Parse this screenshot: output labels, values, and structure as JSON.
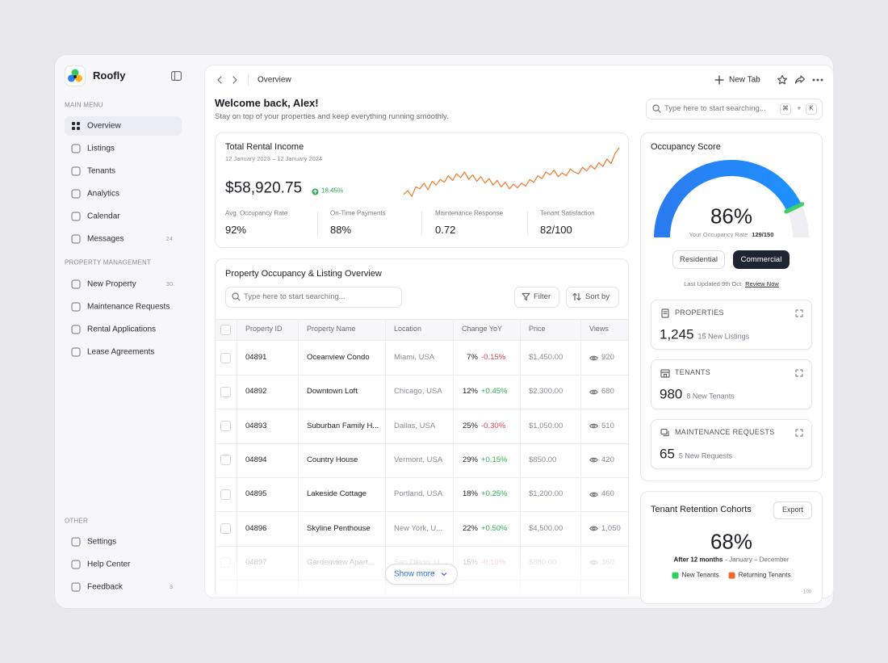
{
  "app": {
    "name": "Roofly"
  },
  "sidebar": {
    "sections": [
      {
        "title": "MAIN MENU",
        "items": [
          {
            "label": "Overview"
          },
          {
            "label": "Listings"
          },
          {
            "label": "Tenants"
          },
          {
            "label": "Analytics"
          },
          {
            "label": "Calendar"
          },
          {
            "label": "Messages",
            "badge": "24"
          }
        ]
      },
      {
        "title": "PROPERTY MANAGEMENT",
        "items": [
          {
            "label": "New Property",
            "badge": "30"
          },
          {
            "label": "Maintenance Requests"
          },
          {
            "label": "Rental Applications"
          },
          {
            "label": "Lease Agreements"
          }
        ]
      },
      {
        "title": "OTHER",
        "items": [
          {
            "label": "Settings"
          },
          {
            "label": "Help Center"
          },
          {
            "label": "Feedback",
            "badge": "3"
          }
        ]
      }
    ]
  },
  "topbar": {
    "breadcrumb": "Overview",
    "new_tab": "New Tab"
  },
  "welcome": {
    "title": "Welcome back, Alex!",
    "subtitle": "Stay on top of your properties and keep everything running smoothly."
  },
  "search": {
    "placeholder": "Type here to start searching...",
    "shortcut": [
      "⌘",
      "+",
      "K"
    ]
  },
  "income": {
    "title": "Total Rental Income",
    "date_range": "12 January 2023 – 12 January 2024",
    "amount": "$58,920.75",
    "change": "18.45%",
    "trend": [
      14,
      18,
      12,
      22,
      20,
      26,
      19,
      28,
      24,
      30,
      27,
      34,
      29,
      36,
      32,
      38,
      30,
      35,
      28,
      33,
      26,
      31,
      24,
      29,
      22,
      27,
      20,
      25,
      21,
      26,
      23,
      30,
      27,
      34,
      31,
      38,
      35,
      40,
      33,
      37,
      34,
      41,
      38,
      36,
      43,
      39,
      45,
      41,
      48,
      44,
      52,
      47,
      58,
      64
    ],
    "stats": [
      {
        "label": "Avg. Occupancy Rate",
        "value": "92%"
      },
      {
        "label": "On-Time Payments",
        "value": "88%"
      },
      {
        "label": "Maintenance Response",
        "value": "0.72"
      },
      {
        "label": "Tenant Satisfaction",
        "value": "82/100"
      }
    ]
  },
  "table": {
    "title": "Property Occupancy & Listing Overview",
    "search_placeholder": "Type here to start searching...",
    "filter": "Filter",
    "sort": "Sort by",
    "columns": [
      "Property ID",
      "Property Name",
      "Location",
      "Change YoY",
      "Price",
      "Views"
    ],
    "rows": [
      {
        "id": "04891",
        "name": "Oceanview Condo",
        "location": "Miami, USA",
        "share": "7%",
        "change": "-0.15%",
        "price": "$1,450.00",
        "views": "920"
      },
      {
        "id": "04892",
        "name": "Downtown Loft",
        "location": "Chicago, USA",
        "share": "12%",
        "change": "+0.45%",
        "price": "$2,300.00",
        "views": "680"
      },
      {
        "id": "04893",
        "name": "Suburban Family H...",
        "location": "Dallas, USA",
        "share": "25%",
        "change": "-0.30%",
        "price": "$1,050.00",
        "views": "510"
      },
      {
        "id": "04894",
        "name": "Country House",
        "location": "Vermont, USA",
        "share": "29%",
        "change": "+0.15%",
        "price": "$850.00",
        "views": "420"
      },
      {
        "id": "04895",
        "name": "Lakeside Cottage",
        "location": "Portland, USA",
        "share": "18%",
        "change": "+0.25%",
        "price": "$1,200.00",
        "views": "460"
      },
      {
        "id": "04896",
        "name": "Skyline Penthouse",
        "location": "New York, U...",
        "share": "22%",
        "change": "+0.50%",
        "price": "$4,500.00",
        "views": "1,050"
      },
      {
        "id": "04897",
        "name": "Gardenview Apart...",
        "location": "San Diego, U...",
        "share": "15%",
        "change": "-0.10%",
        "price": "$880.00",
        "views": "360"
      }
    ],
    "show_more": "Show more"
  },
  "occupancy": {
    "title": "Occupancy Score",
    "rate": 86,
    "rate_label": "86%",
    "caption": "Your Occupancy Rate",
    "ratio": "129/150",
    "tabs": [
      "Residential",
      "Commercial"
    ],
    "active_tab": 1,
    "updated": "Last Updated 9th Oct",
    "review": "Review Now",
    "cards": [
      {
        "title": "PROPERTIES",
        "value": "1,245",
        "note": "15 New Listings"
      },
      {
        "title": "TENANTS",
        "value": "980",
        "note": "8 New Tenants"
      },
      {
        "title": "MAINTENANCE REQUESTS",
        "value": "65",
        "note": "5 New Requests"
      }
    ]
  },
  "retention": {
    "title": "Tenant Retention Cohorts",
    "export": "Export",
    "value": "68%",
    "period": "After 12 months",
    "range": "- January – December",
    "legend": [
      {
        "name": "New Tenants",
        "color": "#2fcf62"
      },
      {
        "name": "Returning Tenants",
        "color": "#f2692c"
      }
    ],
    "axis_label": "100"
  }
}
